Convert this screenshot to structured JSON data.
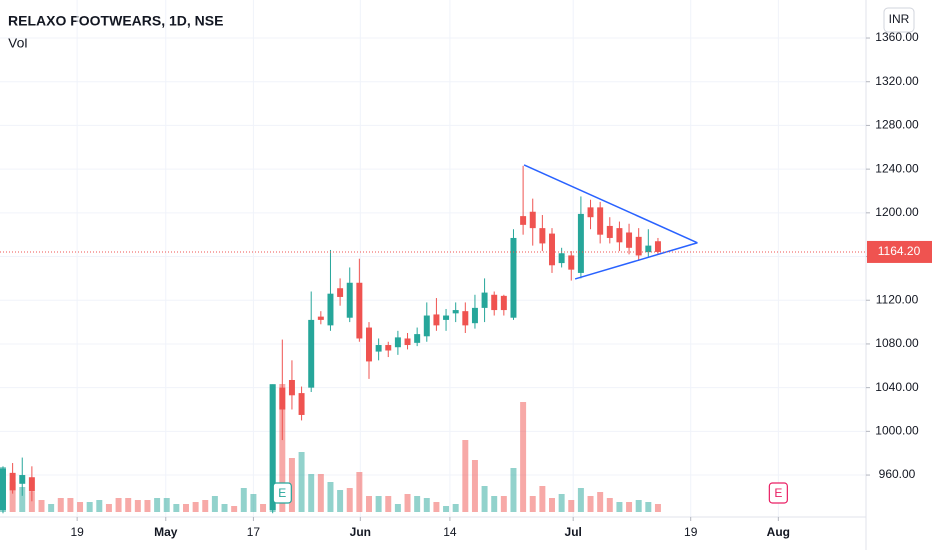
{
  "chart_data": {
    "type": "candlestick",
    "title": "RELAXO FOOTWEARS, 1D, NSE",
    "volume_title": "Vol",
    "currency": "INR",
    "up_color": "#26a69a",
    "down_color": "#ef5350",
    "xlim": [
      -0.31,
      89.6
    ],
    "xticks": [
      {
        "value": 7.7,
        "label": "19"
      },
      {
        "value": 16.9,
        "label": "May"
      },
      {
        "value": 26,
        "label": "17"
      },
      {
        "value": 37.1,
        "label": "Jun"
      },
      {
        "value": 46.4,
        "label": "14"
      },
      {
        "value": 59.2,
        "label": "Jul"
      },
      {
        "value": 71.4,
        "label": "19"
      },
      {
        "value": 80.5,
        "label": "Aug"
      }
    ],
    "ylim": [
      921.6,
      1394.8
    ],
    "yticks": [
      {
        "value": 960,
        "label": "960.00"
      },
      {
        "value": 1000,
        "label": "1000.00"
      },
      {
        "value": 1040,
        "label": "1040.00"
      },
      {
        "value": 1080,
        "label": "1080.00"
      },
      {
        "value": 1120,
        "label": "1120.00"
      },
      {
        "value": 1160,
        "label": "1160.00"
      },
      {
        "value": 1200,
        "label": "1200.00"
      },
      {
        "value": 1240,
        "label": "1240.00"
      },
      {
        "value": 1280,
        "label": "1280.00"
      },
      {
        "value": 1320,
        "label": "1320.00"
      },
      {
        "value": 1360,
        "label": "1360.00"
      }
    ],
    "grid": true,
    "open": [
      928,
      962,
      952,
      958,
      null,
      null,
      null,
      null,
      null,
      null,
      null,
      null,
      null,
      null,
      null,
      null,
      null,
      null,
      null,
      null,
      null,
      null,
      null,
      null,
      null,
      null,
      null,
      null,
      928,
      1040,
      1047,
      1035,
      1040,
      1105,
      1097,
      1131,
      1104,
      1136,
      1095,
      1073,
      1079,
      1077,
      1085,
      1081,
      1087,
      1107,
      1102,
      1108,
      1110,
      1099,
      1113,
      1125,
      1124,
      1104,
      1197,
      1201,
      1186,
      1181,
      1154,
      1161,
      1145,
      1205,
      1205,
      1188,
      1186,
      1182,
      1178,
      1164,
      1174
    ],
    "high": [
      968,
      971,
      976,
      968,
      null,
      null,
      null,
      null,
      null,
      null,
      null,
      null,
      null,
      null,
      null,
      null,
      null,
      null,
      null,
      null,
      null,
      null,
      null,
      null,
      null,
      null,
      null,
      null,
      1043,
      1084,
      1065,
      1041,
      1128,
      1110,
      1166,
      1140,
      1150,
      1158,
      1100,
      1085,
      1082,
      1092,
      1090,
      1095,
      1118,
      1122,
      1112,
      1118,
      1118,
      1125,
      1140,
      1128,
      1125,
      1185,
      1243,
      1213,
      1198,
      1186,
      1168,
      1165,
      1215,
      1212,
      1210,
      1196,
      1192,
      1190,
      1186,
      1185,
      1177
    ],
    "low": [
      925,
      943,
      941,
      936,
      null,
      null,
      null,
      null,
      null,
      null,
      null,
      null,
      null,
      null,
      null,
      null,
      null,
      null,
      null,
      null,
      null,
      null,
      null,
      null,
      null,
      null,
      null,
      null,
      925,
      992,
      1020,
      1010,
      1036,
      1098,
      1092,
      1115,
      1100,
      1082,
      1048,
      1065,
      1068,
      1070,
      1075,
      1078,
      1082,
      1092,
      1092,
      1100,
      1090,
      1094,
      1100,
      1106,
      1106,
      1102,
      1180,
      1170,
      1165,
      1145,
      1150,
      1138,
      1140,
      1185,
      1172,
      1172,
      1165,
      1162,
      1156,
      1160,
      1162
    ],
    "close": [
      966,
      946,
      960,
      945,
      null,
      null,
      null,
      null,
      null,
      null,
      null,
      null,
      null,
      null,
      null,
      null,
      null,
      null,
      null,
      null,
      null,
      null,
      null,
      null,
      null,
      null,
      null,
      null,
      1043,
      1020,
      1033,
      1015,
      1102,
      1102,
      1126,
      1123,
      1136,
      1085,
      1064,
      1079,
      1074,
      1086,
      1079,
      1089,
      1106,
      1097,
      1106,
      1111,
      1097,
      1113,
      1127,
      1111,
      1111,
      1177,
      1189,
      1186,
      1172,
      1152,
      1163,
      1148,
      1199,
      1196,
      1180,
      1177,
      1173,
      1168,
      1161,
      1170,
      1164.2
    ],
    "vlim": [
      0,
      130
    ],
    "volume": [
      45,
      30,
      25,
      20,
      12,
      8,
      14,
      14,
      10,
      10,
      12,
      8,
      14,
      14,
      12,
      12,
      14,
      14,
      8,
      8,
      10,
      12,
      16,
      8,
      6,
      24,
      18,
      8,
      128,
      128,
      54,
      60,
      38,
      38,
      30,
      22,
      24,
      40,
      16,
      16,
      16,
      8,
      18,
      16,
      14,
      10,
      6,
      8,
      72,
      52,
      26,
      16,
      16,
      44,
      110,
      16,
      26,
      14,
      18,
      12,
      24,
      16,
      20,
      14,
      10,
      10,
      12,
      10,
      8
    ],
    "volume_dir": [
      "up",
      "down",
      "up",
      "down",
      "down",
      "up",
      "down",
      "down",
      "down",
      "up",
      "up",
      "down",
      "down",
      "down",
      "down",
      "down",
      "up",
      "up",
      "up",
      "down",
      "down",
      "down",
      "up",
      "up",
      "down",
      "up",
      "up",
      "down",
      "up",
      "down",
      "down",
      "up",
      "up",
      "down",
      "up",
      "up",
      "down",
      "down",
      "down",
      "up",
      "down",
      "up",
      "down",
      "up",
      "up",
      "down",
      "up",
      "up",
      "down",
      "down",
      "up",
      "up",
      "down",
      "up",
      "down",
      "down",
      "down",
      "down",
      "up",
      "down",
      "up",
      "down",
      "down",
      "down",
      "up",
      "down",
      "up",
      "up",
      "down"
    ],
    "last": {
      "value": 1164.2,
      "label": "1164.20"
    },
    "trendline_color": "#2962ff",
    "trendlines": [
      {
        "x": [
          54.1,
          72.1
        ],
        "y": [
          1243.8,
          1172.6
        ]
      },
      {
        "x": [
          59.4,
          72.1
        ],
        "y": [
          1139.5,
          1172.6
        ]
      }
    ],
    "events": [
      {
        "label": "E",
        "x": 29,
        "color": "#26a69a"
      },
      {
        "label": "E",
        "x": 80.5,
        "color": "#e91e63"
      }
    ]
  }
}
